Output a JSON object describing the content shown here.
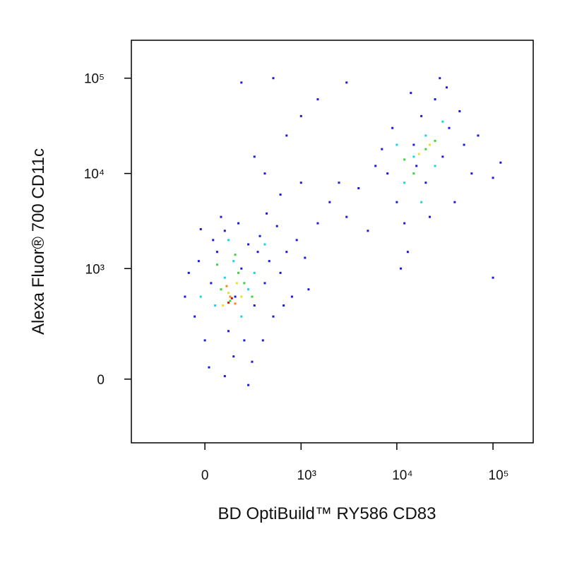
{
  "chart_data": {
    "type": "scatter",
    "x_label": "BD OptiBuild™ RY586 CD83",
    "y_label": "Alexa Fluor® 700 CD11c",
    "xscale": "biexponential",
    "yscale": "biexponential",
    "xlim": [
      -570,
      262000
    ],
    "ylim": [
      -309,
      250000
    ],
    "xticks": [
      0,
      {
        "value": 1000,
        "label": "10³"
      },
      {
        "value": 10000,
        "label": "10⁴"
      },
      {
        "value": 100000,
        "label": "10⁵"
      }
    ],
    "yticks": [
      0,
      {
        "value": 1000,
        "label": "10³"
      },
      {
        "value": 10000,
        "label": "10⁴"
      },
      {
        "value": 100000,
        "label": "10⁵"
      }
    ],
    "series": [
      {
        "color": "#1a1adf",
        "x": [
          -50,
          0,
          30,
          60,
          100,
          120,
          150,
          200,
          250,
          300,
          350,
          400,
          450,
          500,
          600,
          700,
          800,
          -80,
          -30,
          20,
          80,
          180,
          280,
          380,
          550,
          900,
          1100,
          -100,
          40,
          160,
          220,
          330,
          420,
          650,
          1200,
          -20,
          100,
          250,
          1500,
          2000,
          3000,
          2500,
          1000,
          600,
          400,
          300,
          200,
          500,
          1500,
          4000,
          5000,
          700,
          1000,
          3000,
          11000,
          100000,
          8000,
          10000,
          12000,
          15000,
          18000,
          20000,
          25000,
          30000,
          35000,
          40000,
          50000,
          60000,
          70000,
          9000,
          7000,
          14000,
          22000,
          28000,
          45000,
          13000,
          16000,
          100000,
          120000,
          6000,
          33000
        ],
        "y": [
          300,
          150,
          700,
          1500,
          2500,
          200,
          80,
          1000,
          1800,
          400,
          2200,
          700,
          1200,
          300,
          900,
          1500,
          500,
          900,
          1200,
          40,
          3500,
          3000,
          60,
          150,
          2800,
          2000,
          1300,
          500,
          2000,
          500,
          150,
          1500,
          3800,
          400,
          600,
          2600,
          10,
          -20,
          3000,
          5000,
          3500,
          8000,
          8000,
          6000,
          10000,
          15000,
          90000,
          100000,
          60000,
          7000,
          2500,
          25000,
          40000,
          90000,
          1000,
          800,
          10000,
          5000,
          3000,
          20000,
          40000,
          8000,
          60000,
          15000,
          30000,
          5000,
          20000,
          10000,
          25000,
          30000,
          18000,
          70000,
          3500,
          100000,
          45000,
          1500,
          12000,
          9000,
          13000,
          12000,
          80000
        ]
      },
      {
        "color": "#19d3e6",
        "x": [
          50,
          100,
          150,
          200,
          250,
          300,
          -20,
          120,
          400,
          15000,
          20000,
          12000,
          25000,
          30000,
          18000,
          10000
        ],
        "y": [
          400,
          800,
          1200,
          300,
          600,
          900,
          500,
          2000,
          1800,
          15000,
          25000,
          8000,
          12000,
          35000,
          5000,
          20000
        ]
      },
      {
        "color": "#3fd23a",
        "x": [
          80,
          130,
          180,
          220,
          60,
          280,
          160,
          20000,
          15000,
          25000,
          12000
        ],
        "y": [
          600,
          450,
          900,
          700,
          1100,
          500,
          1400,
          18000,
          10000,
          22000,
          14000
        ]
      },
      {
        "color": "#e8e020",
        "x": [
          120,
          170,
          90,
          200,
          17000,
          22000
        ],
        "y": [
          550,
          700,
          400,
          500,
          16000,
          20000
        ]
      },
      {
        "color": "#f08a10",
        "x": [
          130,
          160,
          110
        ],
        "y": [
          500,
          420,
          650
        ]
      },
      {
        "color": "#e01010",
        "x": [
          140,
          120
        ],
        "y": [
          480,
          430
        ]
      }
    ]
  }
}
